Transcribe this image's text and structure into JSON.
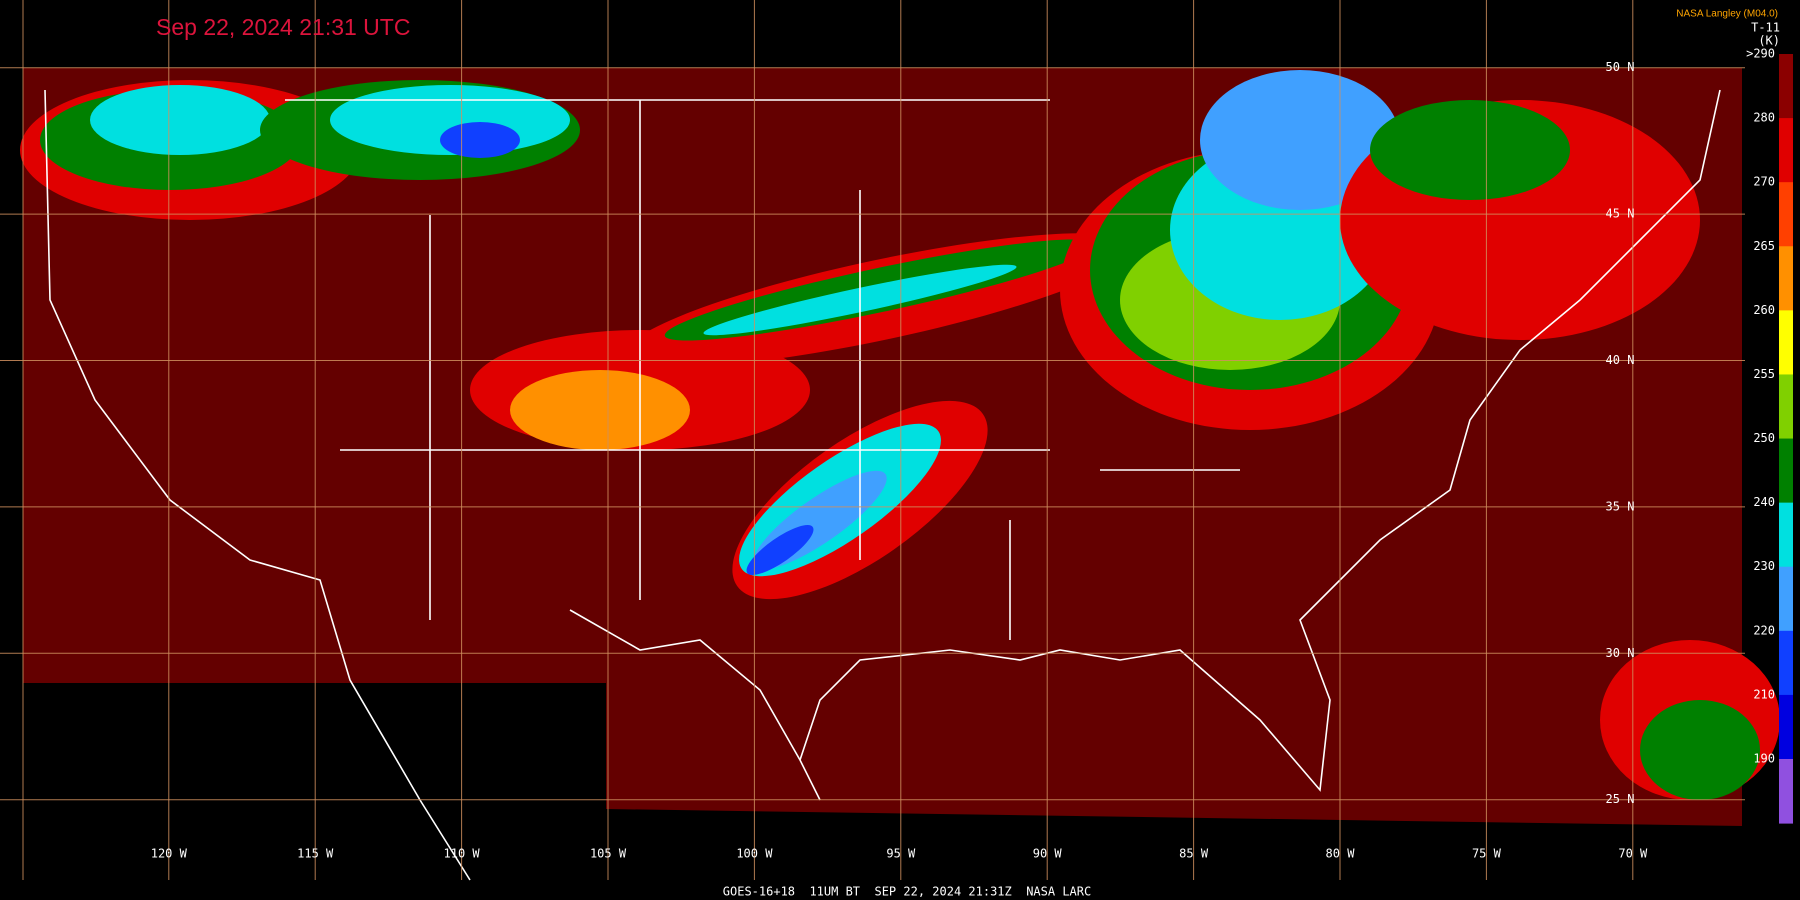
{
  "header": {
    "timestamp": "Sep 22, 2024 21:31 UTC",
    "credit": "NASA Langley (M04.0)"
  },
  "colorbar": {
    "channel": "T-11",
    "unit": "(K)",
    "labels": [
      ">290",
      "280",
      "270",
      "265",
      "260",
      "255",
      "250",
      "240",
      "230",
      "220",
      "210",
      "190"
    ],
    "colors": [
      "#8b0000",
      "#e00000",
      "#ff4000",
      "#ff9000",
      "#ffff00",
      "#80d000",
      "#008000",
      "#00e0e0",
      "#40a0ff",
      "#1040ff",
      "#0000e0",
      "#9050e0"
    ]
  },
  "longitudes": [
    "120 W",
    "115 W",
    "110 W",
    "105 W",
    "100 W",
    "95 W",
    "90 W",
    "85 W",
    "80 W",
    "75 W",
    "70 W"
  ],
  "latitudes": [
    "50 N",
    "45 N",
    "40 N",
    "35 N",
    "30 N",
    "25 N"
  ],
  "footer": "GOES-16+18  11UM BT  SEP 22, 2024 21:31Z  NASA LARC"
}
